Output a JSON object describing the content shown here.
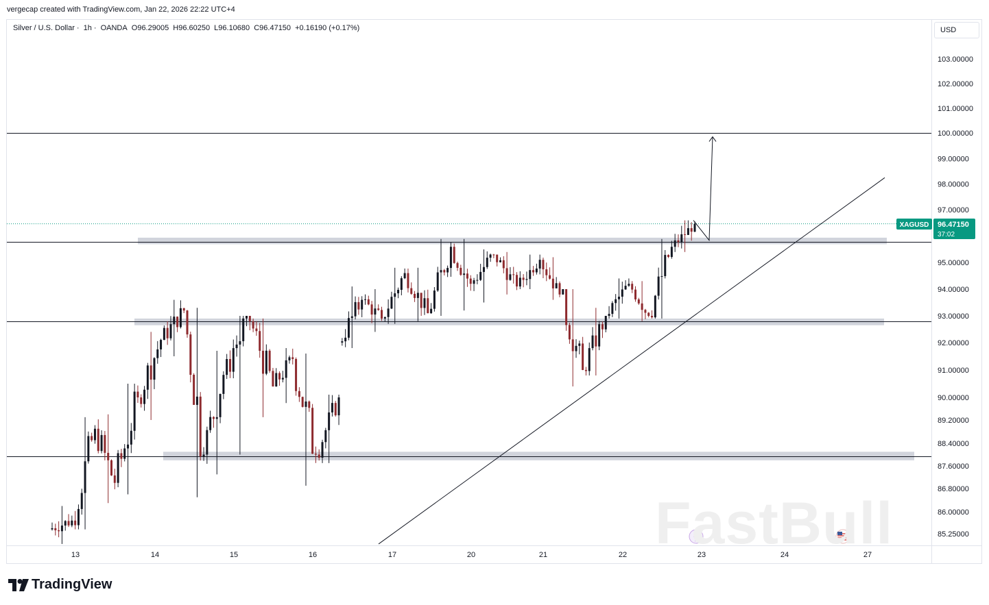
{
  "credit": "vergecap created with TradingView.com, Jan 22, 2026 22:22 UTC+4",
  "header": {
    "symbol": "Silver / U.S. Dollar",
    "interval": "1h",
    "broker": "OANDA",
    "open": "O96.29005",
    "high": "H96.60250",
    "low": "L96.10680",
    "close": "C96.47150",
    "change": "+0.16190 (+0.17%)"
  },
  "currency_button": "USD",
  "price_tag": {
    "ticker": "XAGUSD",
    "price": "96.47150",
    "countdown": "37:02"
  },
  "brand": "TradingView",
  "watermark": "FastBull",
  "colors": {
    "up": "#131722",
    "down": "#8e2a2e",
    "price_line": "#089981",
    "zone": "#d1d4dc",
    "grid": "#ffffff"
  },
  "chart_data": {
    "type": "candlestick",
    "y_ticks": [
      "103.00000",
      "102.00000",
      "101.00000",
      "100.00000",
      "99.00000",
      "98.00000",
      "97.00000",
      "95.00000",
      "94.00000",
      "93.00000",
      "92.00000",
      "91.00000",
      "90.00000",
      "89.20000",
      "88.40000",
      "87.60000",
      "86.80000",
      "86.00000",
      "85.25000"
    ],
    "x_ticks": [
      "13",
      "14",
      "15",
      "16",
      "17",
      "20",
      "21",
      "22",
      "23",
      "24",
      "27"
    ],
    "horizontal_levels": [
      100.0,
      95.8,
      92.8,
      87.95
    ],
    "zones": [
      {
        "from": "14",
        "to": "23+",
        "low": 95.7,
        "high": 95.95
      },
      {
        "from": "14",
        "to": "23+",
        "low": 92.65,
        "high": 92.9
      },
      {
        "from": "14",
        "to": "24+",
        "low": 87.8,
        "high": 88.1
      }
    ],
    "trendline": {
      "from": {
        "x": "16 end",
        "y": 84.9
      },
      "to": {
        "x": "24 end",
        "y": 98.25
      }
    },
    "projection_arrow": [
      {
        "x": "22 end",
        "y": 96.6
      },
      {
        "x": "23",
        "y": 95.85
      },
      {
        "x": "23",
        "y": 99.85
      }
    ],
    "last_price": 96.4715,
    "segments": [
      {
        "day": "13",
        "open": 85.4,
        "close": 85.7,
        "low": 84.9,
        "high": 86.2
      },
      {
        "day": "13-14",
        "open": 85.7,
        "close": 88.9,
        "low": 85.4,
        "high": 89.3
      },
      {
        "day": "14",
        "open": 88.9,
        "close": 87.0,
        "low": 86.3,
        "high": 89.4
      },
      {
        "day": "14",
        "open": 87.0,
        "close": 90.0,
        "low": 86.6,
        "high": 90.5
      },
      {
        "day": "14-15",
        "open": 90.0,
        "close": 92.1,
        "low": 89.2,
        "high": 92.4
      },
      {
        "day": "15",
        "open": 92.1,
        "close": 93.2,
        "low": 91.5,
        "high": 93.6
      },
      {
        "day": "15",
        "open": 93.2,
        "close": 88.0,
        "low": 86.5,
        "high": 93.3
      },
      {
        "day": "15-16",
        "open": 88.0,
        "close": 91.4,
        "low": 87.3,
        "high": 91.7
      },
      {
        "day": "16",
        "open": 91.4,
        "close": 92.8,
        "low": 88.0,
        "high": 93.0
      },
      {
        "day": "16",
        "open": 92.8,
        "close": 90.4,
        "low": 89.3,
        "high": 92.9
      },
      {
        "day": "16",
        "open": 90.4,
        "close": 91.4,
        "low": 89.8,
        "high": 91.8
      },
      {
        "day": "16-17",
        "open": 91.4,
        "close": 88.0,
        "low": 86.9,
        "high": 91.6
      },
      {
        "day": "17",
        "open": 88.0,
        "close": 90.0,
        "low": 87.7,
        "high": 90.1
      },
      {
        "day": "17",
        "open": 92.0,
        "close": 93.6,
        "low": 91.8,
        "high": 94.1
      },
      {
        "day": "17-20",
        "open": 93.6,
        "close": 92.9,
        "low": 92.4,
        "high": 94.0
      },
      {
        "day": "20",
        "open": 92.9,
        "close": 94.6,
        "low": 92.7,
        "high": 94.8
      },
      {
        "day": "20",
        "open": 94.6,
        "close": 93.1,
        "low": 92.8,
        "high": 94.8
      },
      {
        "day": "20",
        "open": 93.1,
        "close": 95.6,
        "low": 93.0,
        "high": 95.9
      },
      {
        "day": "20-21",
        "open": 95.6,
        "close": 94.2,
        "low": 93.2,
        "high": 95.9
      },
      {
        "day": "21",
        "open": 94.2,
        "close": 95.3,
        "low": 93.5,
        "high": 95.5
      },
      {
        "day": "21",
        "open": 95.3,
        "close": 94.1,
        "low": 93.8,
        "high": 95.4
      },
      {
        "day": "21",
        "open": 94.1,
        "close": 95.1,
        "low": 94.0,
        "high": 95.3
      },
      {
        "day": "21-22",
        "open": 95.1,
        "close": 93.8,
        "low": 93.6,
        "high": 95.2
      },
      {
        "day": "22",
        "open": 93.8,
        "close": 91.0,
        "low": 90.4,
        "high": 94.0
      },
      {
        "day": "22",
        "open": 91.0,
        "close": 93.0,
        "low": 90.8,
        "high": 93.3
      },
      {
        "day": "22",
        "open": 93.0,
        "close": 94.2,
        "low": 92.9,
        "high": 94.4
      },
      {
        "day": "22",
        "open": 94.2,
        "close": 93.0,
        "low": 92.8,
        "high": 94.3
      },
      {
        "day": "22",
        "open": 93.0,
        "close": 95.6,
        "low": 92.9,
        "high": 95.9
      },
      {
        "day": "22",
        "open": 95.6,
        "close": 96.47,
        "low": 95.4,
        "high": 96.6
      }
    ]
  }
}
